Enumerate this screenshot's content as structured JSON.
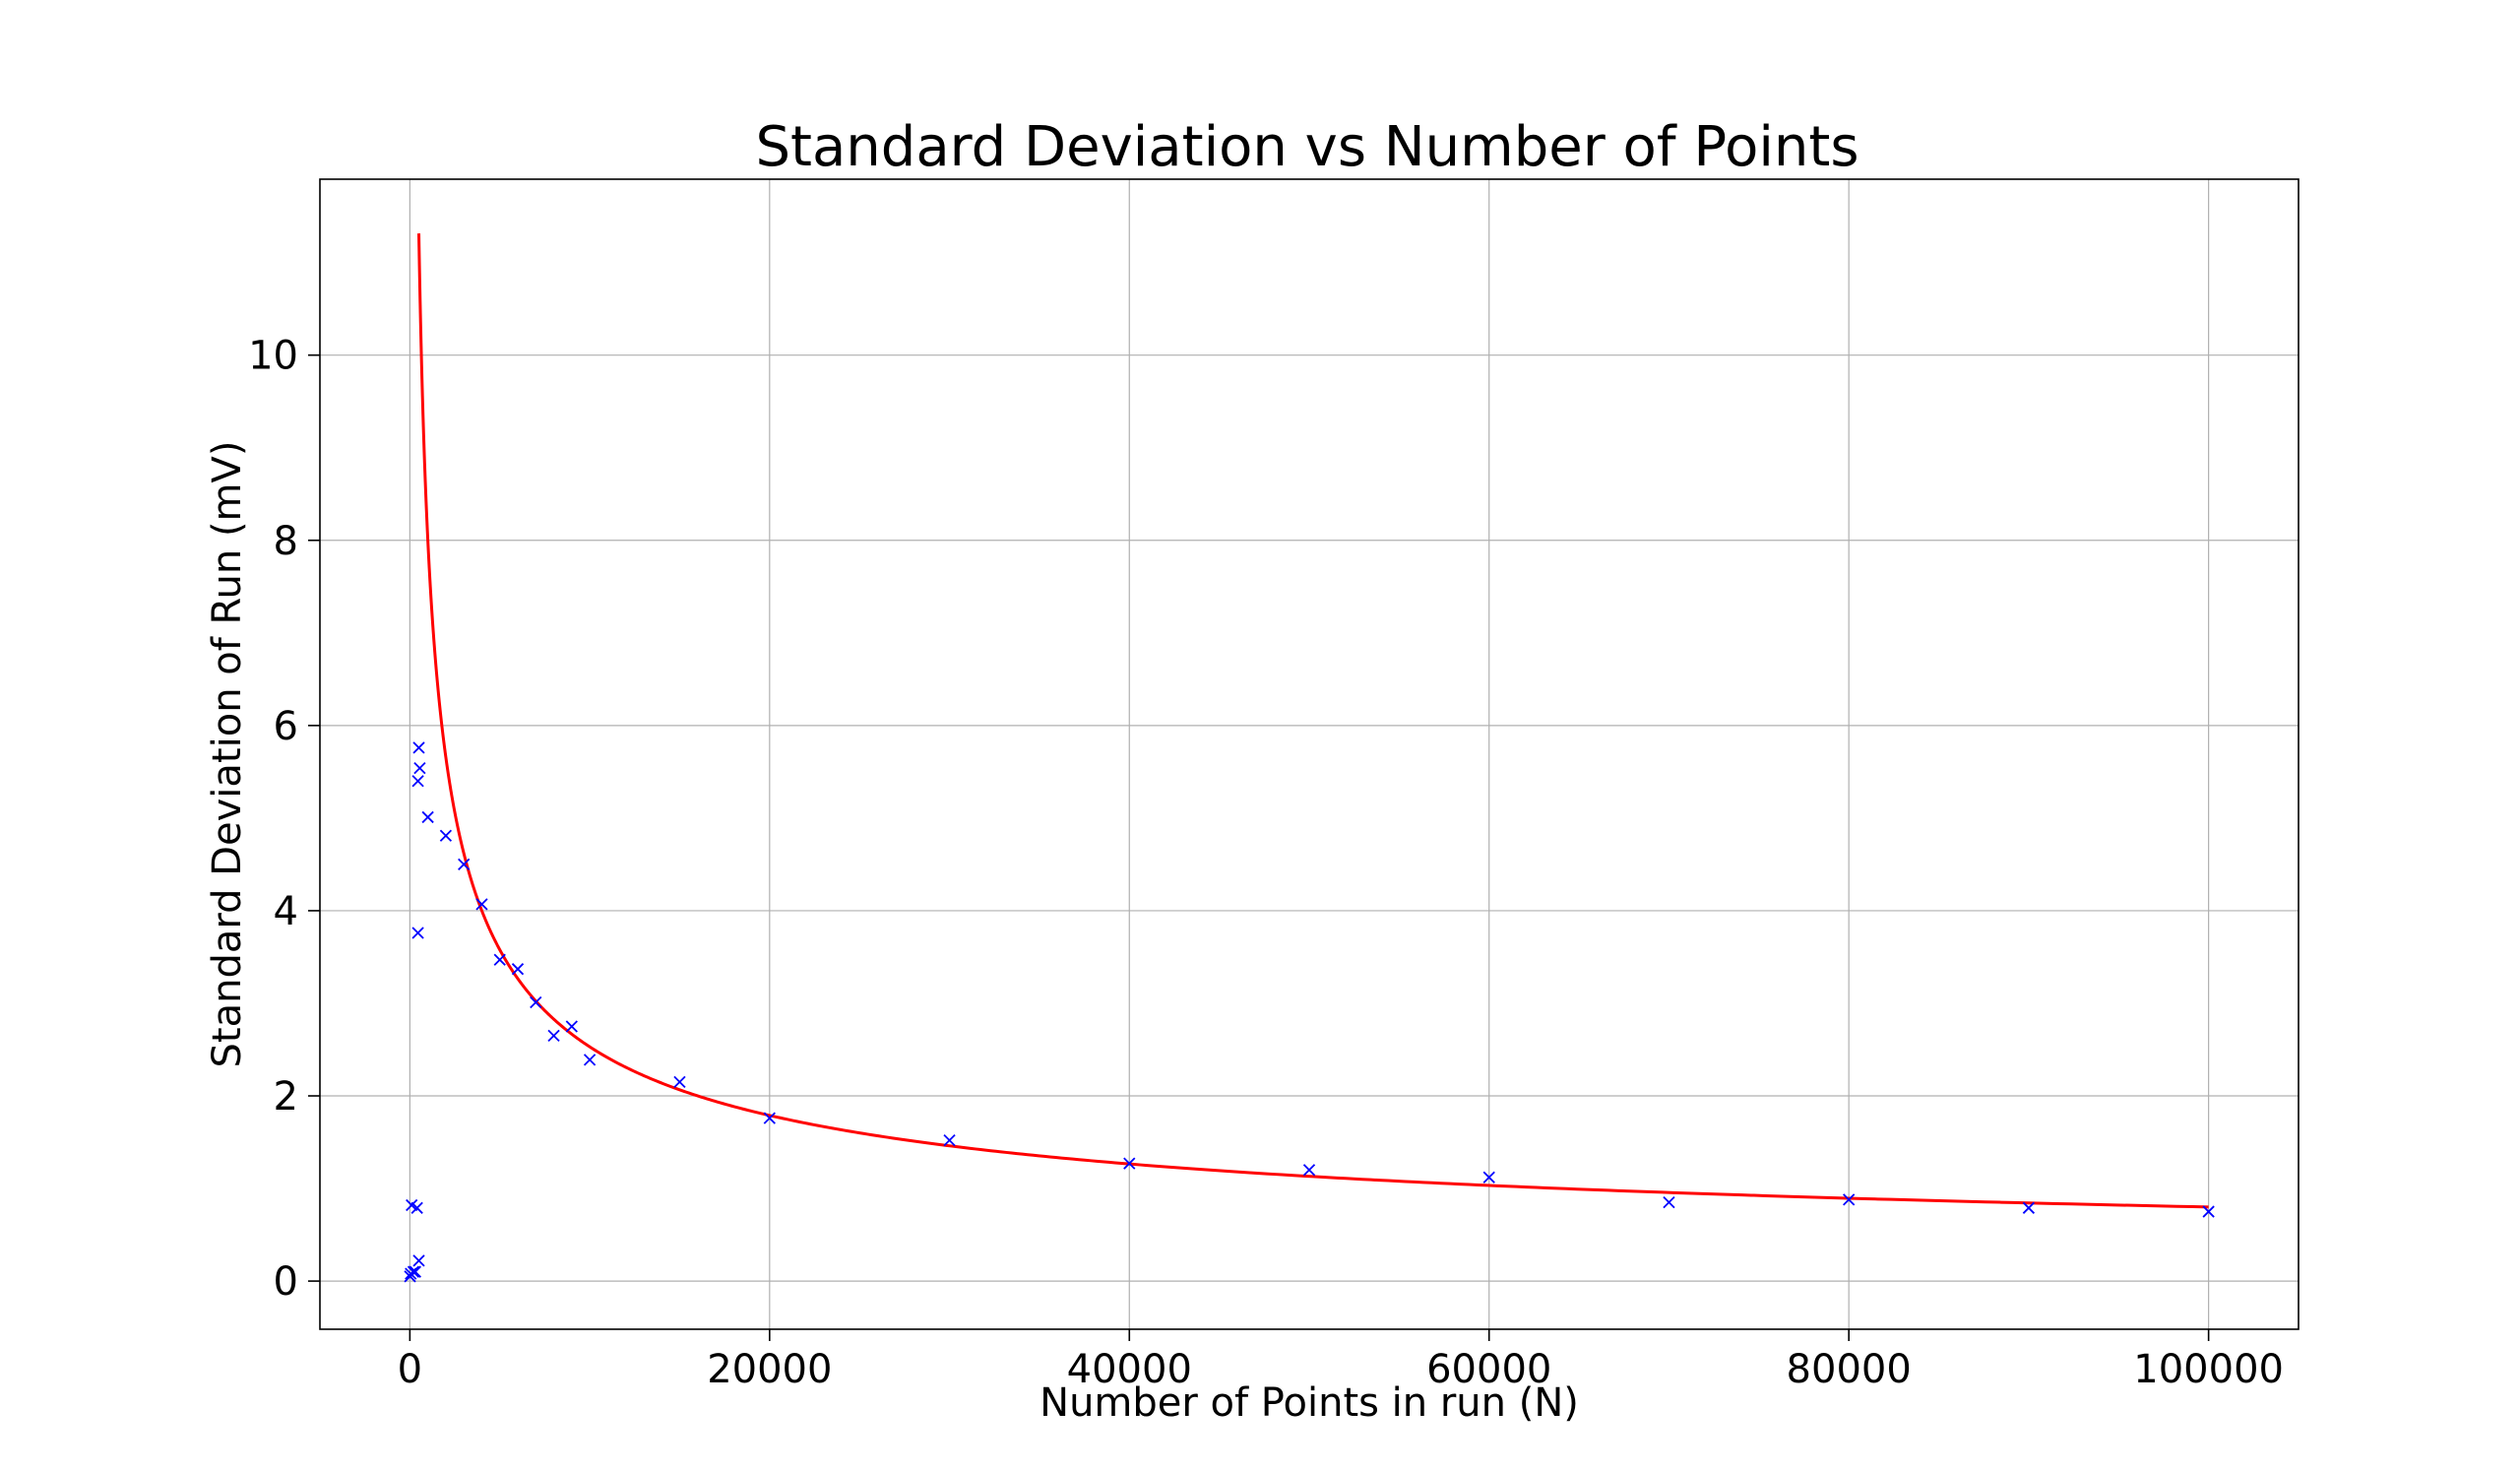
{
  "chart_data": {
    "type": "scatter",
    "title": "Standard Deviation vs Number of Points",
    "xlabel": "Number of Points in run (N)",
    "ylabel": "Standard Deviation of Run (mV)",
    "xlim": [
      -5000,
      105000
    ],
    "ylim": [
      -0.52,
      11.9
    ],
    "grid": true,
    "x_ticks": [
      0,
      20000,
      40000,
      60000,
      80000,
      100000
    ],
    "y_ticks": [
      0,
      2,
      4,
      6,
      8,
      10
    ],
    "x_tick_labels": [
      "0",
      "20000",
      "40000",
      "60000",
      "80000",
      "100000"
    ],
    "y_tick_labels": [
      "0",
      "2",
      "4",
      "6",
      "8",
      "10"
    ],
    "series": [
      {
        "type": "scatter",
        "marker": "x",
        "color": "#0000ff",
        "points": [
          {
            "x": 10,
            "y": 0.05
          },
          {
            "x": 50,
            "y": 0.08
          },
          {
            "x": 100,
            "y": 0.82
          },
          {
            "x": 200,
            "y": 0.1
          },
          {
            "x": 300,
            "y": 0.1
          },
          {
            "x": 400,
            "y": 0.79
          },
          {
            "x": 450,
            "y": 5.4
          },
          {
            "x": 450,
            "y": 3.76
          },
          {
            "x": 500,
            "y": 5.76
          },
          {
            "x": 500,
            "y": 0.22
          },
          {
            "x": 550,
            "y": 5.54
          },
          {
            "x": 1000,
            "y": 5.01
          },
          {
            "x": 2000,
            "y": 4.81
          },
          {
            "x": 3000,
            "y": 4.5
          },
          {
            "x": 4000,
            "y": 4.07
          },
          {
            "x": 5000,
            "y": 3.47
          },
          {
            "x": 6000,
            "y": 3.37
          },
          {
            "x": 7000,
            "y": 3.01
          },
          {
            "x": 8000,
            "y": 2.65
          },
          {
            "x": 9000,
            "y": 2.75
          },
          {
            "x": 10000,
            "y": 2.39
          },
          {
            "x": 15000,
            "y": 2.15
          },
          {
            "x": 20000,
            "y": 1.76
          },
          {
            "x": 30000,
            "y": 1.52
          },
          {
            "x": 40000,
            "y": 1.27
          },
          {
            "x": 50000,
            "y": 1.2
          },
          {
            "x": 60000,
            "y": 1.12
          },
          {
            "x": 70000,
            "y": 0.85
          },
          {
            "x": 80000,
            "y": 0.88
          },
          {
            "x": 90000,
            "y": 0.79
          },
          {
            "x": 100000,
            "y": 0.75
          }
        ]
      },
      {
        "type": "line",
        "color": "#ff0000",
        "function": "y = a / sqrt(x)",
        "a": 253,
        "x_start": 500,
        "x_end": 100000
      }
    ]
  }
}
